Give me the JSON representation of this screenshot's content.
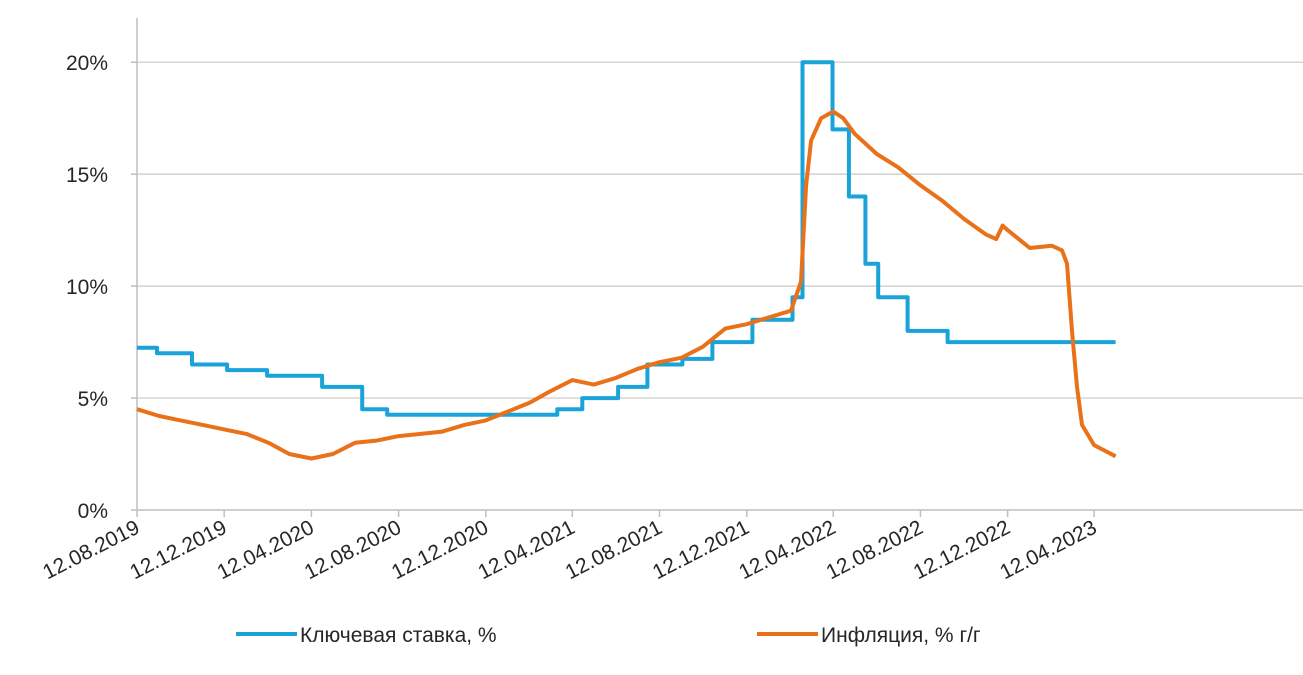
{
  "chart_data": {
    "type": "line",
    "title": "",
    "xlabel": "",
    "ylabel": "",
    "ylim": [
      0,
      21
    ],
    "xlim": [
      "2019-08-12",
      "2023-05-12"
    ],
    "y_ticks": [
      "0%",
      "5%",
      "10%",
      "15%",
      "20%"
    ],
    "y_tick_values": [
      0,
      5,
      10,
      15,
      20
    ],
    "x_ticks": [
      "12.08.2019",
      "12.12.2019",
      "12.04.2020",
      "12.08.2020",
      "12.12.2020",
      "12.04.2021",
      "12.08.2021",
      "12.12.2021",
      "12.04.2022",
      "12.08.2022",
      "12.12.2022",
      "12.04.2023"
    ],
    "x_tick_dates": [
      "2019-08-12",
      "2019-12-12",
      "2020-04-12",
      "2020-08-12",
      "2020-12-12",
      "2021-04-12",
      "2021-08-12",
      "2021-12-12",
      "2022-04-12",
      "2022-08-12",
      "2022-12-12",
      "2023-04-12"
    ],
    "grid": "horizontal",
    "legend_position": "bottom",
    "series": [
      {
        "name": "Ключевая ставка, %",
        "color": "#1aa3d9",
        "step": true,
        "x": [
          "2019-08-12",
          "2019-09-09",
          "2019-10-28",
          "2019-12-16",
          "2020-02-10",
          "2020-04-27",
          "2020-06-22",
          "2020-07-27",
          "2021-03-22",
          "2021-04-26",
          "2021-06-15",
          "2021-07-26",
          "2021-09-13",
          "2021-10-25",
          "2021-12-20",
          "2022-02-14",
          "2022-02-28",
          "2022-04-11",
          "2022-05-04",
          "2022-05-27",
          "2022-06-14",
          "2022-07-25",
          "2022-09-19",
          "2023-05-12"
        ],
        "values": [
          7.25,
          7.0,
          6.5,
          6.25,
          6.0,
          5.5,
          4.5,
          4.25,
          4.5,
          5.0,
          5.5,
          6.5,
          6.75,
          7.5,
          8.5,
          9.5,
          20.0,
          17.0,
          14.0,
          11.0,
          9.5,
          8.0,
          7.5,
          7.5
        ]
      },
      {
        "name": "Инфляция, % г/г",
        "color": "#e8711a",
        "step": false,
        "x": [
          "2019-08-12",
          "2019-09-12",
          "2019-10-12",
          "2019-11-12",
          "2019-12-12",
          "2020-01-12",
          "2020-02-12",
          "2020-03-12",
          "2020-04-12",
          "2020-05-12",
          "2020-06-12",
          "2020-07-12",
          "2020-08-12",
          "2020-09-12",
          "2020-10-12",
          "2020-11-12",
          "2020-12-12",
          "2021-01-12",
          "2021-02-12",
          "2021-03-12",
          "2021-04-12",
          "2021-05-12",
          "2021-06-12",
          "2021-07-12",
          "2021-08-12",
          "2021-09-12",
          "2021-10-12",
          "2021-11-12",
          "2021-12-12",
          "2022-01-12",
          "2022-02-12",
          "2022-02-26",
          "2022-03-05",
          "2022-03-12",
          "2022-03-26",
          "2022-04-12",
          "2022-04-26",
          "2022-05-12",
          "2022-06-12",
          "2022-07-12",
          "2022-08-12",
          "2022-09-12",
          "2022-10-12",
          "2022-11-12",
          "2022-11-26",
          "2022-12-05",
          "2022-12-12",
          "2023-01-12",
          "2023-02-12",
          "2023-02-26",
          "2023-03-05",
          "2023-03-12",
          "2023-03-19",
          "2023-03-26",
          "2023-04-12",
          "2023-05-12"
        ],
        "values": [
          4.5,
          4.2,
          4.0,
          3.8,
          3.6,
          3.4,
          3.0,
          2.5,
          2.3,
          2.5,
          3.0,
          3.1,
          3.3,
          3.4,
          3.5,
          3.8,
          4.0,
          4.4,
          4.8,
          5.3,
          5.8,
          5.6,
          5.9,
          6.3,
          6.6,
          6.8,
          7.3,
          8.1,
          8.3,
          8.6,
          8.9,
          10.2,
          14.5,
          16.5,
          17.5,
          17.8,
          17.5,
          16.8,
          15.9,
          15.3,
          14.5,
          13.8,
          13.0,
          12.3,
          12.1,
          12.7,
          12.5,
          11.7,
          11.8,
          11.6,
          11.0,
          8.0,
          5.5,
          3.8,
          2.9,
          2.4
        ]
      }
    ]
  }
}
